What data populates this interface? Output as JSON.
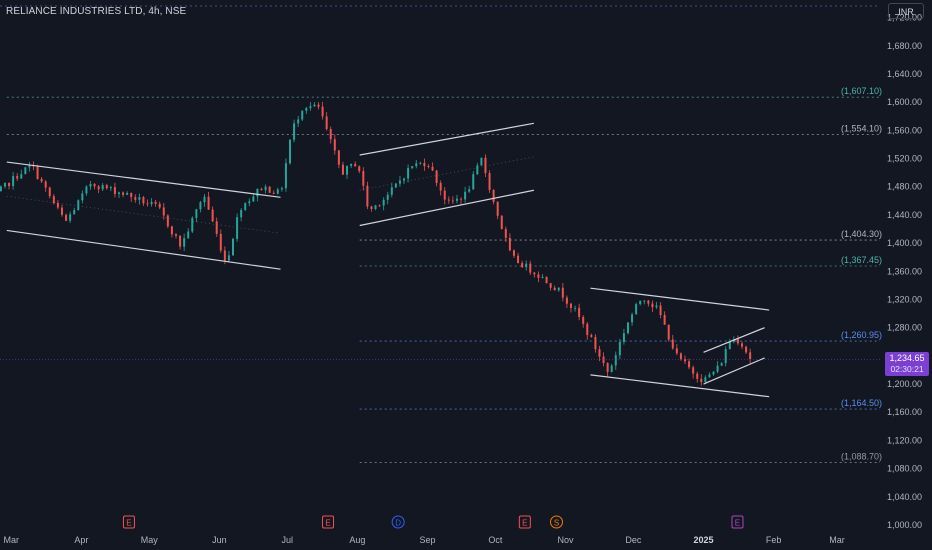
{
  "symbol": {
    "title": "RELIANCE INDUSTRIES LTD, 4h, NSE"
  },
  "currency": "INR",
  "last_price": {
    "value": "1,234.65",
    "countdown": "02:30:21"
  },
  "colors": {
    "background": "#131722",
    "up": "#26a69a",
    "down": "#ef5350",
    "channel": "#d1d4dc",
    "accent": "#7b3fd6"
  },
  "chart_data": {
    "type": "candlestick",
    "y_axis": {
      "ticks": [
        "1,720.00",
        "1,680.00",
        "1,640.00",
        "1,600.00",
        "1,560.00",
        "1,520.00",
        "1,480.00",
        "1,440.00",
        "1,400.00",
        "1,360.00",
        "1,320.00",
        "1,280.00",
        "1,240.00",
        "1,200.00",
        "1,160.00",
        "1,120.00",
        "1,080.00",
        "1,040.00",
        "1,000.00"
      ],
      "range": [
        990,
        1745
      ]
    },
    "x_axis": {
      "ticks": [
        "Mar",
        "Apr",
        "May",
        "Jun",
        "Jul",
        "Aug",
        "Sep",
        "Oct",
        "Nov",
        "Dec",
        "2025",
        "Feb",
        "Mar"
      ],
      "range": [
        "2024-02-25",
        "2025-03-20"
      ]
    },
    "series": {
      "path": [
        {
          "date": "2024-02-20",
          "price": 1460
        },
        {
          "date": "2024-03-05",
          "price": 1500
        },
        {
          "date": "2024-03-10",
          "price": 1510
        },
        {
          "date": "2024-03-20",
          "price": 1455
        },
        {
          "date": "2024-03-25",
          "price": 1430
        },
        {
          "date": "2024-04-05",
          "price": 1485
        },
        {
          "date": "2024-04-20",
          "price": 1470
        },
        {
          "date": "2024-05-05",
          "price": 1450
        },
        {
          "date": "2024-05-15",
          "price": 1395
        },
        {
          "date": "2024-05-25",
          "price": 1470
        },
        {
          "date": "2024-06-04",
          "price": 1370
        },
        {
          "date": "2024-06-10",
          "price": 1450
        },
        {
          "date": "2024-06-20",
          "price": 1480
        },
        {
          "date": "2024-06-28",
          "price": 1470
        },
        {
          "date": "2024-07-03",
          "price": 1560
        },
        {
          "date": "2024-07-08",
          "price": 1595
        },
        {
          "date": "2024-07-15",
          "price": 1592
        },
        {
          "date": "2024-07-20",
          "price": 1545
        },
        {
          "date": "2024-07-25",
          "price": 1500
        },
        {
          "date": "2024-08-01",
          "price": 1515
        },
        {
          "date": "2024-08-06",
          "price": 1445
        },
        {
          "date": "2024-08-15",
          "price": 1470
        },
        {
          "date": "2024-08-25",
          "price": 1510
        },
        {
          "date": "2024-09-01",
          "price": 1515
        },
        {
          "date": "2024-09-10",
          "price": 1455
        },
        {
          "date": "2024-09-18",
          "price": 1470
        },
        {
          "date": "2024-09-25",
          "price": 1520
        },
        {
          "date": "2024-09-30",
          "price": 1460
        },
        {
          "date": "2024-10-02",
          "price": 1440
        },
        {
          "date": "2024-10-08",
          "price": 1380
        },
        {
          "date": "2024-10-20",
          "price": 1355
        },
        {
          "date": "2024-10-30",
          "price": 1330
        },
        {
          "date": "2024-11-06",
          "price": 1300
        },
        {
          "date": "2024-11-12",
          "price": 1265
        },
        {
          "date": "2024-11-20",
          "price": 1215
        },
        {
          "date": "2024-11-28",
          "price": 1285
        },
        {
          "date": "2024-12-05",
          "price": 1325
        },
        {
          "date": "2024-12-12",
          "price": 1305
        },
        {
          "date": "2024-12-20",
          "price": 1240
        },
        {
          "date": "2024-12-28",
          "price": 1215
        },
        {
          "date": "2025-01-01",
          "price": 1205
        },
        {
          "date": "2025-01-08",
          "price": 1225
        },
        {
          "date": "2025-01-13",
          "price": 1265
        },
        {
          "date": "2025-01-17",
          "price": 1262
        },
        {
          "date": "2025-01-22",
          "price": 1234.65
        }
      ]
    },
    "channels": [
      {
        "upper": [
          {
            "date": "2024-02-28",
            "price": 1515
          },
          {
            "date": "2024-06-28",
            "price": 1465
          }
        ],
        "lower": [
          {
            "date": "2024-02-28",
            "price": 1418
          },
          {
            "date": "2024-06-28",
            "price": 1363
          }
        ]
      },
      {
        "upper": [
          {
            "date": "2024-08-02",
            "price": 1525
          },
          {
            "date": "2024-10-18",
            "price": 1570
          }
        ],
        "lower": [
          {
            "date": "2024-08-02",
            "price": 1425
          },
          {
            "date": "2024-10-18",
            "price": 1475
          }
        ]
      },
      {
        "upper": [
          {
            "date": "2024-11-12",
            "price": 1336
          },
          {
            "date": "2025-01-30",
            "price": 1305
          }
        ],
        "lower": [
          {
            "date": "2024-11-12",
            "price": 1213
          },
          {
            "date": "2025-01-30",
            "price": 1182
          }
        ]
      },
      {
        "upper": [
          {
            "date": "2025-01-01",
            "price": 1245
          },
          {
            "date": "2025-01-28",
            "price": 1280
          }
        ],
        "lower": [
          {
            "date": "2025-01-01",
            "price": 1200
          },
          {
            "date": "2025-01-28",
            "price": 1237
          }
        ]
      }
    ],
    "levels": [
      {
        "label": "(1,607.10)",
        "value": 1607.1,
        "color": "#4db6ac",
        "from": "2024-02-28"
      },
      {
        "label": "(1,554.10)",
        "value": 1554.1,
        "color": "#b2b5be",
        "from": "2024-02-28"
      },
      {
        "label": "(1,404.30)",
        "value": 1404.3,
        "color": "#b2b5be",
        "from": "2024-08-02"
      },
      {
        "label": "(1,367.45)",
        "value": 1367.45,
        "color": "#4db6ac",
        "from": "2024-08-02"
      },
      {
        "label": "(1,260.95)",
        "value": 1260.95,
        "color": "#5b8def",
        "from": "2024-08-02"
      },
      {
        "label": "(1,164.50)",
        "value": 1164.5,
        "color": "#5b8def",
        "from": "2024-08-02"
      },
      {
        "label": "(1,088.70)",
        "value": 1088.7,
        "color": "#9598a1",
        "from": "2024-08-02"
      }
    ],
    "events": [
      {
        "label": "E",
        "date": "2024-04-22",
        "kind": "earnings"
      },
      {
        "label": "E",
        "date": "2024-07-19",
        "kind": "earnings"
      },
      {
        "label": "D",
        "date": "2024-08-19",
        "kind": "dividend"
      },
      {
        "label": "E",
        "date": "2024-10-14",
        "kind": "earnings"
      },
      {
        "label": "S",
        "date": "2024-10-28",
        "kind": "split"
      },
      {
        "label": "E",
        "date": "2025-01-16",
        "kind": "earnings-upcoming"
      }
    ]
  }
}
